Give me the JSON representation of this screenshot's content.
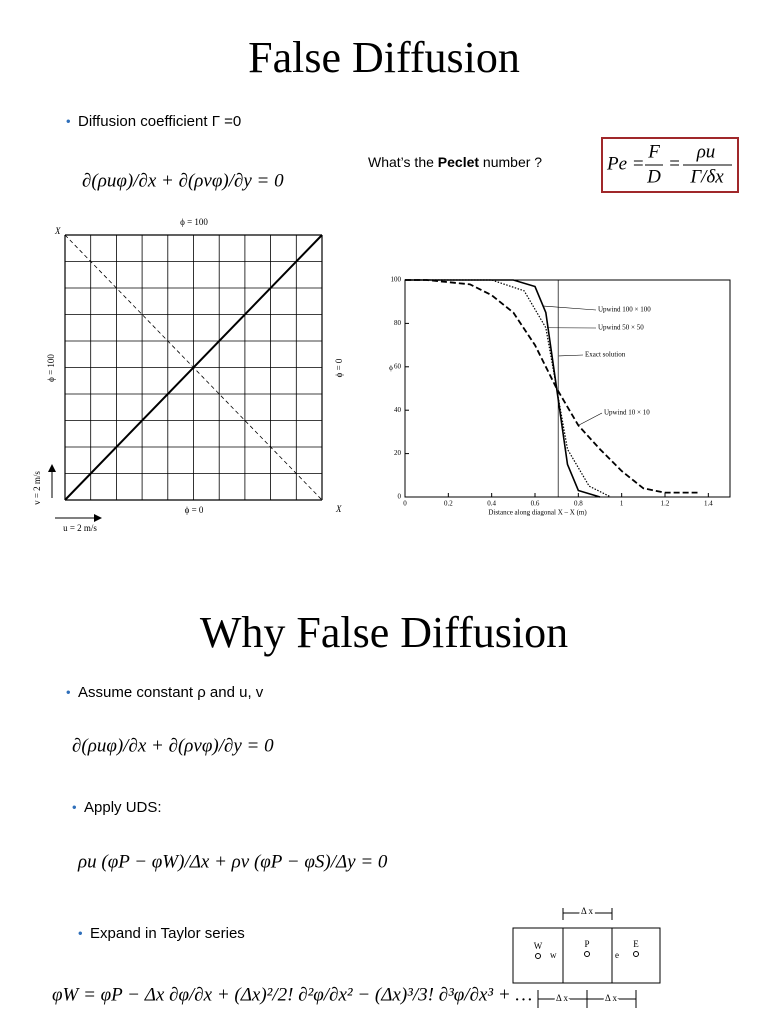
{
  "slide1": {
    "title": "False Diffusion",
    "bullet": "Diffusion coefficient  Γ =0",
    "equation": "∂(ρuφ)/∂x + ∂(ρvφ)/∂y = 0",
    "question": "What’s the ",
    "question_bold": "Peclet",
    "question_end": " number ?",
    "peclet": {
      "lhs": "Pe =",
      "num1": "F",
      "den1": "D",
      "eq": "=",
      "num2": "ρu",
      "den2": "Γ/δx"
    },
    "grid_figure": {
      "top": "ϕ = 100",
      "left": "ϕ = 100",
      "right": "ϕ = 0",
      "bottom": "ϕ = 0",
      "x_top": "X",
      "x_bottom": "X",
      "v_label": "v = 2 m/s",
      "u_label": "u = 2 m/s"
    },
    "chart_data": {
      "type": "line",
      "xlabel": "Distance along diagonal X – X (m)",
      "ylabel": "ϕ",
      "xlim": [
        0,
        1.5
      ],
      "ylim": [
        0,
        100
      ],
      "xticks": [
        0,
        0.2,
        0.4,
        0.6,
        0.8,
        1.0,
        1.2,
        1.4
      ],
      "yticks": [
        0,
        20,
        40,
        60,
        80,
        100
      ],
      "series": [
        {
          "name": "Upwind 100 × 100",
          "color": "#000000",
          "dash": "solid",
          "x": [
            0,
            0.5,
            0.6,
            0.65,
            0.7,
            0.75,
            0.8,
            0.9
          ],
          "values": [
            100,
            100,
            97,
            85,
            50,
            15,
            3,
            0
          ]
        },
        {
          "name": "Upwind 50 × 50",
          "color": "#000000",
          "dash": "dotted",
          "x": [
            0,
            0.4,
            0.55,
            0.65,
            0.7,
            0.75,
            0.85,
            0.95
          ],
          "values": [
            100,
            100,
            95,
            78,
            50,
            22,
            5,
            0
          ]
        },
        {
          "name": "Exact solution",
          "color": "#000000",
          "dash": "thin",
          "x": [
            0,
            0.707,
            0.707,
            1.414
          ],
          "values": [
            100,
            100,
            0,
            0
          ]
        },
        {
          "name": "Upwind 10 × 10",
          "color": "#000000",
          "dash": "dashed",
          "x": [
            0,
            0.1,
            0.3,
            0.4,
            0.5,
            0.6,
            0.7,
            0.8,
            0.9,
            1.0,
            1.1,
            1.2,
            1.35
          ],
          "values": [
            100,
            100,
            98,
            93,
            85,
            70,
            50,
            33,
            22,
            12,
            4,
            2,
            2
          ]
        }
      ]
    }
  },
  "slide2": {
    "title": "Why False Diffusion",
    "bullet1": "Assume constant ρ and u, v",
    "equation1": "∂(ρuφ)/∂x + ∂(ρvφ)/∂y = 0",
    "bullet2": "Apply UDS:",
    "equation2": "ρu (φP − φW)/Δx + ρv (φP − φS)/Δy = 0",
    "bullet3": "Expand in Taylor series",
    "equation3": "φW = φP − Δx ∂φ/∂x + (Δx)²/2! ∂²φ/∂x² − (Δx)³/3! ∂³φ/∂x³ + …",
    "cell_diagram": {
      "dx_top": "Δ x",
      "W": "W",
      "w": "w",
      "P": "P",
      "e": "e",
      "E": "E",
      "dx_left": "Δ x",
      "dx_right": "Δ x"
    }
  }
}
